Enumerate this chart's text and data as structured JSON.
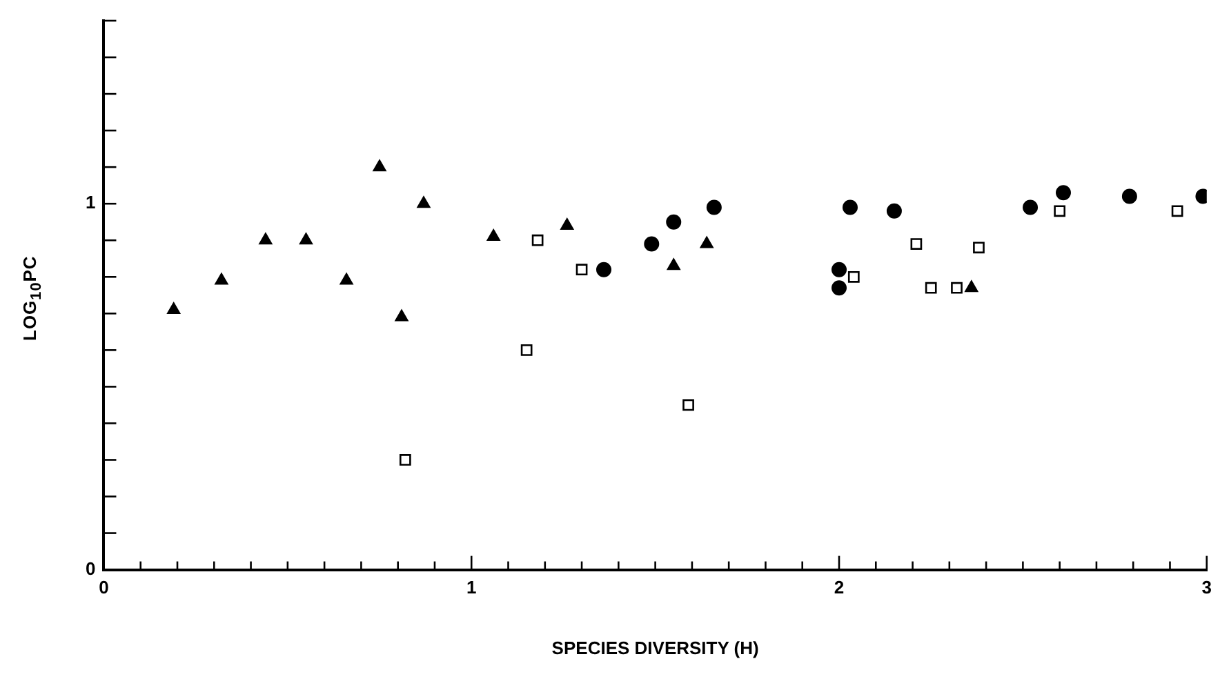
{
  "chart_data": {
    "type": "scatter",
    "xlabel": "SPECIES DIVERSITY (H)",
    "ylabel": "LOG$_{10}$PC",
    "xlim": [
      0,
      3
    ],
    "ylim": [
      0,
      1.5
    ],
    "xticks": [
      0,
      {
        "value": 0.1,
        "label": null
      },
      {
        "value": 0.2,
        "label": null
      },
      {
        "value": 0.3,
        "label": null
      },
      {
        "value": 0.4,
        "label": null
      },
      {
        "value": 0.5,
        "label": null
      },
      {
        "value": 0.6,
        "label": null
      },
      {
        "value": 0.7,
        "label": null
      },
      {
        "value": 0.8,
        "label": null
      },
      {
        "value": 0.9,
        "label": null
      },
      1,
      {
        "value": 1.1,
        "label": null
      },
      {
        "value": 1.2,
        "label": null
      },
      {
        "value": 1.3,
        "label": null
      },
      {
        "value": 1.4,
        "label": null
      },
      {
        "value": 1.5,
        "label": null
      },
      {
        "value": 1.6,
        "label": null
      },
      {
        "value": 1.7,
        "label": null
      },
      {
        "value": 1.8,
        "label": null
      },
      {
        "value": 1.9,
        "label": null
      },
      2,
      {
        "value": 2.1,
        "label": null
      },
      {
        "value": 2.2,
        "label": null
      },
      {
        "value": 2.3,
        "label": null
      },
      {
        "value": 2.4,
        "label": null
      },
      {
        "value": 2.5,
        "label": null
      },
      {
        "value": 2.6,
        "label": null
      },
      {
        "value": 2.7,
        "label": null
      },
      {
        "value": 2.8,
        "label": null
      },
      {
        "value": 2.9,
        "label": null
      },
      3
    ],
    "yticks": [
      0,
      {
        "value": 0.1,
        "label": null
      },
      {
        "value": 0.2,
        "label": null
      },
      {
        "value": 0.3,
        "label": null
      },
      {
        "value": 0.4,
        "label": null
      },
      {
        "value": 0.5,
        "label": null
      },
      {
        "value": 0.6,
        "label": null
      },
      {
        "value": 0.7,
        "label": null
      },
      {
        "value": 0.8,
        "label": null
      },
      {
        "value": 0.9,
        "label": null
      },
      1,
      {
        "value": 1.1,
        "label": null
      },
      {
        "value": 1.2,
        "label": null
      },
      {
        "value": 1.3,
        "label": null
      },
      {
        "value": 1.4,
        "label": null
      },
      {
        "value": 1.5,
        "label": null
      }
    ],
    "grid": false,
    "legend": false,
    "series": [
      {
        "color": "#000000",
        "marker": "triangle",
        "x": [
          0.19,
          0.32,
          0.44,
          0.55,
          0.66,
          0.75,
          0.81,
          0.87,
          1.06,
          1.26,
          1.55,
          1.64,
          2.36
        ],
        "values": [
          0.71,
          0.79,
          0.9,
          0.9,
          0.79,
          1.1,
          0.69,
          1.0,
          0.91,
          0.94,
          0.83,
          0.89,
          0.77
        ]
      },
      {
        "color": "#000000",
        "marker": "square",
        "x": [
          0.82,
          1.15,
          1.18,
          1.3,
          1.59,
          2.04,
          2.21,
          2.25,
          2.32,
          2.38,
          2.6,
          2.92
        ],
        "values": [
          0.3,
          0.6,
          0.9,
          0.82,
          0.45,
          0.8,
          0.89,
          0.77,
          0.77,
          0.88,
          0.98,
          0.98
        ]
      },
      {
        "color": "#000000",
        "marker": "circle",
        "x": [
          1.36,
          1.49,
          1.55,
          1.66,
          2.0,
          2.0,
          2.03,
          2.15,
          2.52,
          2.61,
          2.79,
          2.99
        ],
        "values": [
          0.82,
          0.89,
          0.95,
          0.99,
          0.82,
          0.77,
          0.99,
          0.98,
          0.99,
          1.03,
          1.02,
          1.02
        ]
      }
    ]
  }
}
